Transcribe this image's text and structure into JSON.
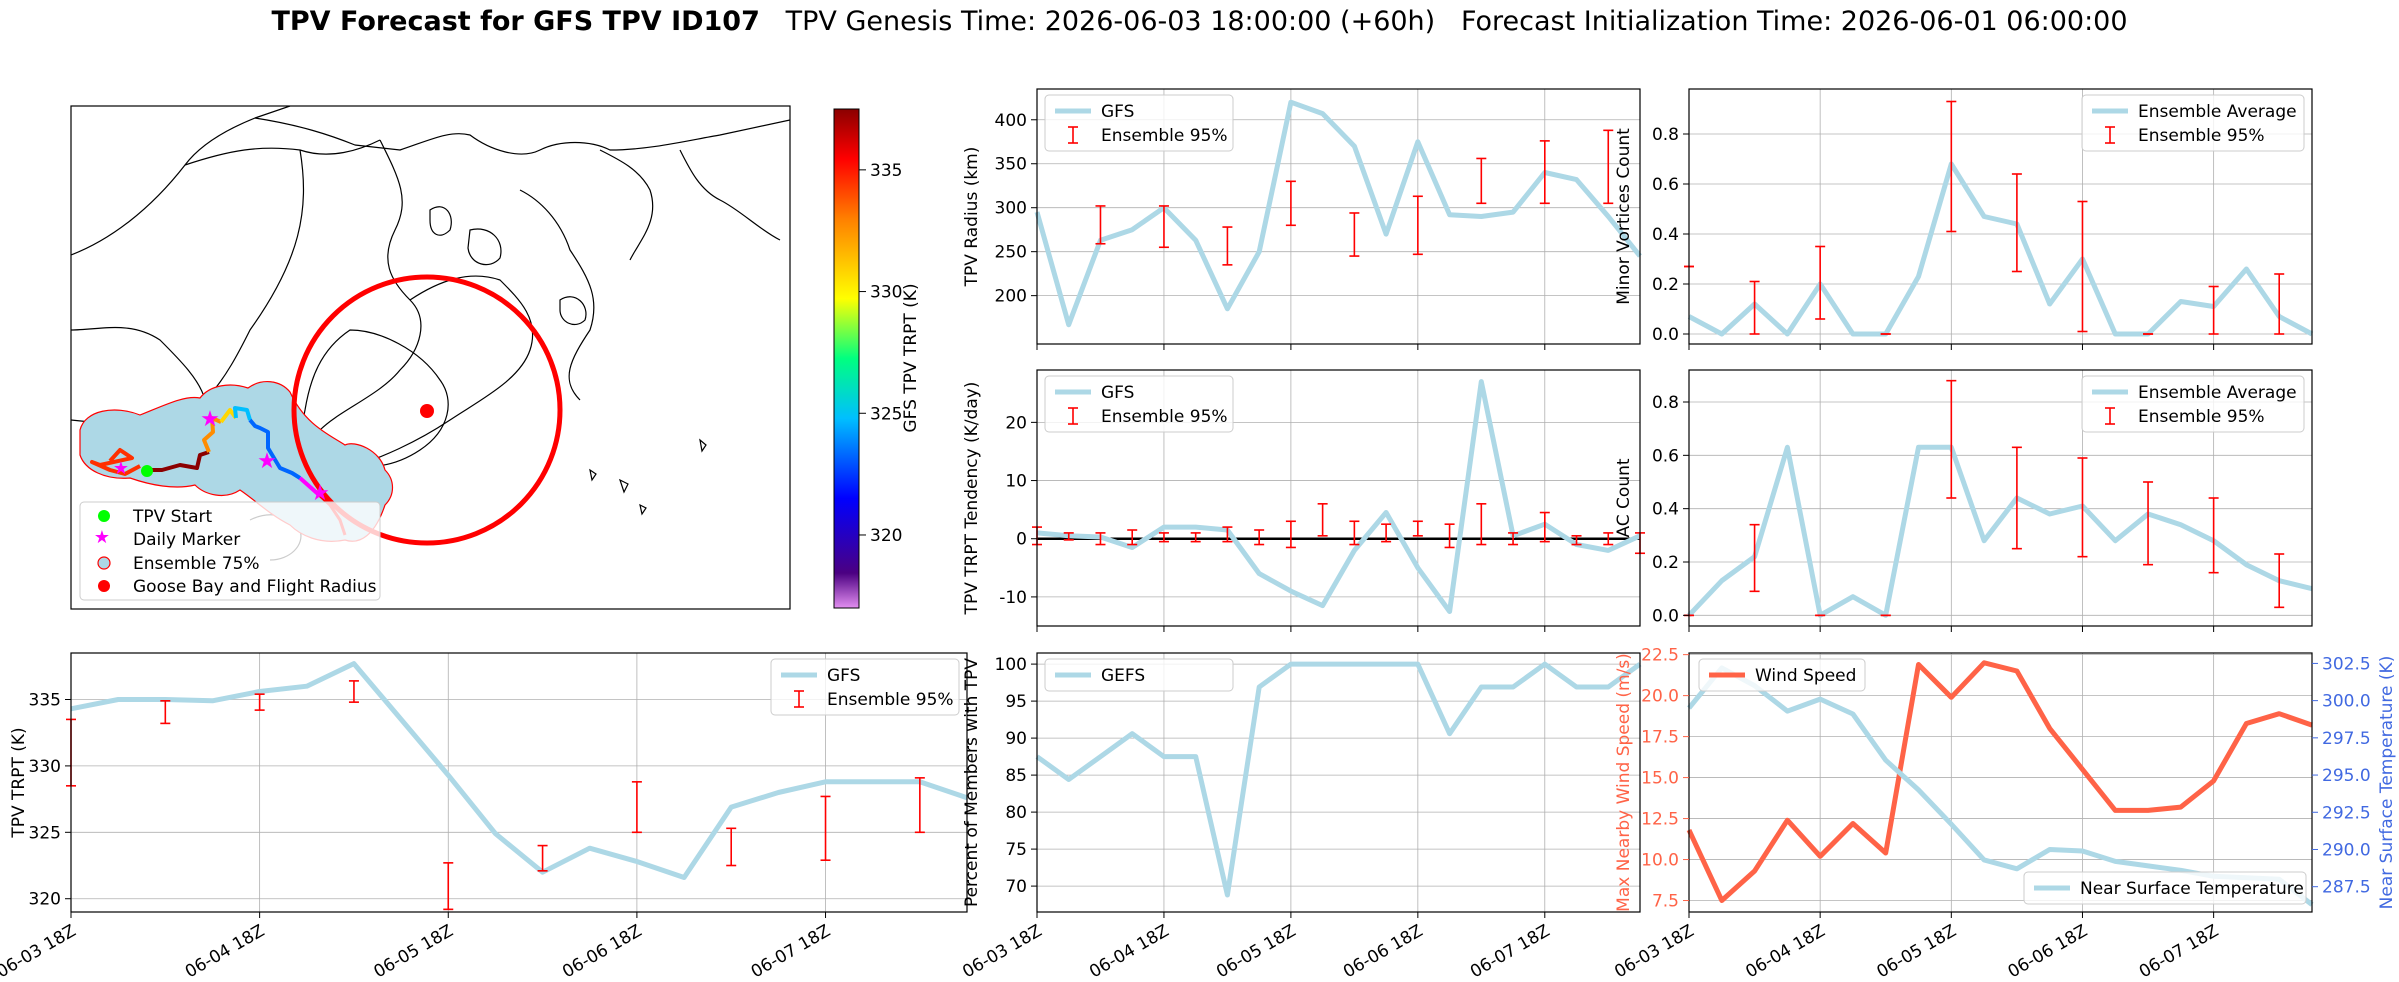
{
  "title": {
    "bold": "TPV Forecast for GFS TPV ID107",
    "genesis": "TPV Genesis Time: 2026-06-03 18:00:00 (+60h)",
    "init": "Forecast Initialization Time: 2026-06-01 06:00:00"
  },
  "colors": {
    "gfs_line": "#add8e6",
    "ensemble_err": "#ff0000",
    "wind": "#ff6347",
    "temp_axis": "#4169e1",
    "track_fill": "#add8e6",
    "flight_circle": "#ff0000"
  },
  "map": {
    "colorbar_label": "GFS TPV TRPT (K)",
    "colorbar_ticks": [
      "320",
      "325",
      "330",
      "335"
    ],
    "colorbar_range": [
      317,
      337.5
    ],
    "legend": [
      {
        "label": "TPV Start",
        "marker": "circle",
        "color": "#00ff00"
      },
      {
        "label": "Daily Marker",
        "marker": "star",
        "color": "#ff00ff"
      },
      {
        "label": "Ensemble 75%",
        "marker": "circle",
        "color": "#add8e6"
      },
      {
        "label": "Goose Bay and Flight Radius",
        "marker": "circle",
        "color": "#ff0000"
      }
    ]
  },
  "x_ticks": [
    "06-03 18Z",
    "06-04 18Z",
    "06-05 18Z",
    "06-06 18Z",
    "06-07 18Z"
  ],
  "chart_data": [
    {
      "id": "trpt",
      "type": "line",
      "ylabel": "TPV TRPT (K)",
      "ylim": [
        319,
        338.5
      ],
      "yticks": [
        320,
        325,
        330,
        335
      ],
      "x": [
        0,
        0.25,
        0.5,
        0.75,
        1,
        1.25,
        1.5,
        1.75,
        2,
        2.25,
        2.5,
        2.75,
        3,
        3.25,
        3.5,
        3.75,
        4,
        4.25,
        4.5,
        4.75
      ],
      "series": [
        {
          "name": "GFS",
          "values": [
            334.3,
            335,
            335,
            334.9,
            335.6,
            336,
            337.7,
            333.5,
            329.3,
            324.9,
            322,
            323.8,
            322.8,
            321.6,
            326.9,
            328,
            328.8,
            328.8,
            328.8,
            327.6
          ]
        }
      ],
      "errorbars": [
        {
          "x": 0,
          "low": 328.5,
          "high": 333.5
        },
        {
          "x": 0.5,
          "low": 333.2,
          "high": 334.9
        },
        {
          "x": 1,
          "low": 334.2,
          "high": 335.4
        },
        {
          "x": 1.5,
          "low": 334.8,
          "high": 336.4
        },
        {
          "x": 2,
          "low": 319.2,
          "high": 322.7
        },
        {
          "x": 2.5,
          "low": 322.1,
          "high": 324
        },
        {
          "x": 3,
          "low": 325,
          "high": 328.8
        },
        {
          "x": 3.5,
          "low": 322.5,
          "high": 325.3
        },
        {
          "x": 4,
          "low": 322.9,
          "high": 327.7
        },
        {
          "x": 4.5,
          "low": 325,
          "high": 329.1
        }
      ],
      "legend": [
        "GFS",
        "Ensemble 95%"
      ]
    },
    {
      "id": "radius",
      "type": "line",
      "ylabel": "TPV Radius (km)",
      "ylim": [
        145,
        435
      ],
      "yticks": [
        200,
        250,
        300,
        350,
        400
      ],
      "x": [
        0,
        0.25,
        0.5,
        0.75,
        1,
        1.25,
        1.5,
        1.75,
        2,
        2.25,
        2.5,
        2.75,
        3,
        3.25,
        3.5,
        3.75,
        4,
        4.25,
        4.5,
        4.75
      ],
      "series": [
        {
          "name": "GFS",
          "values": [
            295,
            167,
            263,
            275,
            300,
            263,
            185,
            250,
            420,
            407,
            370,
            270,
            375,
            292,
            290,
            295,
            340,
            332,
            290,
            245
          ]
        }
      ],
      "errorbars": [
        {
          "x": 0.5,
          "low": 259,
          "high": 302
        },
        {
          "x": 1,
          "low": 255,
          "high": 302
        },
        {
          "x": 1.5,
          "low": 235,
          "high": 278
        },
        {
          "x": 2,
          "low": 280,
          "high": 330
        },
        {
          "x": 2.5,
          "low": 245,
          "high": 294
        },
        {
          "x": 3,
          "low": 247,
          "high": 313
        },
        {
          "x": 3.5,
          "low": 305,
          "high": 356
        },
        {
          "x": 4,
          "low": 305,
          "high": 376
        },
        {
          "x": 4.5,
          "low": 305,
          "high": 388
        }
      ],
      "legend": [
        "GFS",
        "Ensemble 95%"
      ]
    },
    {
      "id": "minor",
      "type": "line",
      "ylabel": "Minor Vortices Count",
      "ylim": [
        -0.04,
        0.98
      ],
      "yticks": [
        0.0,
        0.2,
        0.4,
        0.6,
        0.8
      ],
      "x": [
        0,
        0.25,
        0.5,
        0.75,
        1,
        1.25,
        1.5,
        1.75,
        2,
        2.25,
        2.5,
        2.75,
        3,
        3.25,
        3.5,
        3.75,
        4,
        4.25,
        4.5,
        4.75
      ],
      "series": [
        {
          "name": "Ensemble Average",
          "values": [
            0.07,
            0,
            0.12,
            0,
            0.2,
            0,
            0,
            0.23,
            0.68,
            0.47,
            0.44,
            0.12,
            0.3,
            0,
            0,
            0.13,
            0.11,
            0.26,
            0.07,
            0
          ]
        }
      ],
      "errorbars": [
        {
          "x": 0,
          "low": 0.27,
          "high": 0.27
        },
        {
          "x": 0.5,
          "low": 0,
          "high": 0.21
        },
        {
          "x": 1,
          "low": 0.06,
          "high": 0.35
        },
        {
          "x": 1.5,
          "low": 0,
          "high": 0
        },
        {
          "x": 2,
          "low": 0.41,
          "high": 0.93
        },
        {
          "x": 2.5,
          "low": 0.25,
          "high": 0.64
        },
        {
          "x": 3,
          "low": 0.01,
          "high": 0.53
        },
        {
          "x": 3.5,
          "low": 0,
          "high": 0
        },
        {
          "x": 4,
          "low": 0,
          "high": 0.19
        },
        {
          "x": 4.5,
          "low": 0,
          "high": 0.24
        }
      ],
      "legend": [
        "Ensemble Average",
        "Ensemble 95%"
      ]
    },
    {
      "id": "tendency",
      "type": "line",
      "ylabel": "TPV TRPT Tendency (K/day)",
      "ylim": [
        -15,
        29
      ],
      "yticks": [
        -10,
        0,
        10,
        20
      ],
      "zero_line": true,
      "x": [
        0,
        0.25,
        0.5,
        0.75,
        1,
        1.25,
        1.5,
        1.75,
        2,
        2.25,
        2.5,
        2.75,
        3,
        3.25,
        3.5,
        3.75,
        4,
        4.25,
        4.5,
        4.75
      ],
      "series": [
        {
          "name": "GFS",
          "values": [
            1,
            0.5,
            0.3,
            -1.5,
            2,
            2,
            1.5,
            -6,
            -9,
            -11.5,
            -2,
            4.5,
            -5,
            -12.5,
            27,
            0.5,
            2.5,
            -1,
            -2,
            0.5
          ]
        }
      ],
      "errorbars": [
        {
          "x": 0,
          "low": -1,
          "high": 2
        },
        {
          "x": 0.25,
          "low": -0.2,
          "high": 1
        },
        {
          "x": 0.5,
          "low": -1,
          "high": 1
        },
        {
          "x": 0.75,
          "low": -1,
          "high": 1.5
        },
        {
          "x": 1,
          "low": -0.5,
          "high": 1
        },
        {
          "x": 1.25,
          "low": -0.5,
          "high": 1
        },
        {
          "x": 1.5,
          "low": -0.5,
          "high": 2
        },
        {
          "x": 1.75,
          "low": -1,
          "high": 1.5
        },
        {
          "x": 2,
          "low": -1.5,
          "high": 3
        },
        {
          "x": 2.25,
          "low": 0.5,
          "high": 6
        },
        {
          "x": 2.5,
          "low": -1,
          "high": 3
        },
        {
          "x": 2.75,
          "low": -0.5,
          "high": 2.5
        },
        {
          "x": 3,
          "low": 0.5,
          "high": 3
        },
        {
          "x": 3.25,
          "low": -1.5,
          "high": 2.5
        },
        {
          "x": 3.5,
          "low": -1,
          "high": 6
        },
        {
          "x": 3.75,
          "low": -1,
          "high": 1
        },
        {
          "x": 4,
          "low": -0.5,
          "high": 4.5
        },
        {
          "x": 4.25,
          "low": -1,
          "high": 0.5
        },
        {
          "x": 4.5,
          "low": -1,
          "high": 1
        },
        {
          "x": 4.75,
          "low": -2.5,
          "high": 1
        }
      ],
      "legend": [
        "GFS",
        "Ensemble 95%"
      ]
    },
    {
      "id": "ac",
      "type": "line",
      "ylabel": "AC Count",
      "ylim": [
        -0.04,
        0.92
      ],
      "yticks": [
        0.0,
        0.2,
        0.4,
        0.6,
        0.8
      ],
      "x": [
        0,
        0.25,
        0.5,
        0.75,
        1,
        1.25,
        1.5,
        1.75,
        2,
        2.25,
        2.5,
        2.75,
        3,
        3.25,
        3.5,
        3.75,
        4,
        4.25,
        4.5,
        4.75
      ],
      "series": [
        {
          "name": "Ensemble Average",
          "values": [
            0,
            0.13,
            0.22,
            0.63,
            0,
            0.07,
            0,
            0.63,
            0.63,
            0.28,
            0.44,
            0.38,
            0.41,
            0.28,
            0.38,
            0.34,
            0.28,
            0.19,
            0.13,
            0.1
          ]
        }
      ],
      "errorbars": [
        {
          "x": 0,
          "low": 0,
          "high": 0
        },
        {
          "x": 0.5,
          "low": 0.09,
          "high": 0.34
        },
        {
          "x": 1,
          "low": 0,
          "high": 0
        },
        {
          "x": 1.5,
          "low": 0,
          "high": 0
        },
        {
          "x": 2,
          "low": 0.44,
          "high": 0.88
        },
        {
          "x": 2.5,
          "low": 0.25,
          "high": 0.63
        },
        {
          "x": 3,
          "low": 0.22,
          "high": 0.59
        },
        {
          "x": 3.5,
          "low": 0.19,
          "high": 0.5
        },
        {
          "x": 4,
          "low": 0.16,
          "high": 0.44
        },
        {
          "x": 4.5,
          "low": 0.03,
          "high": 0.23
        }
      ],
      "legend": [
        "Ensemble Average",
        "Ensemble 95%"
      ]
    },
    {
      "id": "percent",
      "type": "line",
      "ylabel": "Percent of Members with TPV",
      "ylim": [
        66.5,
        101.5
      ],
      "yticks": [
        70,
        75,
        80,
        85,
        90,
        95,
        100
      ],
      "x": [
        0,
        0.25,
        0.5,
        0.75,
        1,
        1.25,
        1.5,
        1.75,
        2,
        2.25,
        2.5,
        2.75,
        3,
        3.25,
        3.5,
        3.75,
        4,
        4.25,
        4.5,
        4.75
      ],
      "series": [
        {
          "name": "GEFS",
          "values": [
            87.5,
            84.4,
            87.5,
            90.6,
            87.5,
            87.5,
            68.8,
            96.9,
            100,
            100,
            100,
            100,
            100,
            90.6,
            96.9,
            96.9,
            100,
            96.9,
            96.9,
            100
          ]
        }
      ],
      "legend": [
        "GEFS"
      ]
    },
    {
      "id": "windtemp",
      "type": "line",
      "ylabel": "Max Nearby Wind Speed (m/s)",
      "ylabel2": "Near Surface Temperature (K)",
      "ylim": [
        6.8,
        22.6
      ],
      "yticks": [
        7.5,
        10.0,
        12.5,
        15.0,
        17.5,
        20.0,
        22.5
      ],
      "ylim2": [
        285.8,
        303.2
      ],
      "yticks2": [
        287.5,
        290.0,
        292.5,
        295.0,
        297.5,
        300.0,
        302.5
      ],
      "x": [
        0,
        0.25,
        0.5,
        0.75,
        1,
        1.25,
        1.5,
        1.75,
        2,
        2.25,
        2.5,
        2.75,
        3,
        3.25,
        3.5,
        3.75,
        4,
        4.25,
        4.5,
        4.75
      ],
      "series": [
        {
          "name": "Wind Speed",
          "axis": "left",
          "values": [
            11.8,
            7.5,
            9.3,
            12.4,
            10.2,
            12.2,
            10.4,
            21.9,
            19.9,
            22,
            21.5,
            18,
            15.5,
            13,
            13,
            13.2,
            14.8,
            18.3,
            18.9,
            18.2
          ]
        },
        {
          "name": "Near Surface Temperature",
          "axis": "right",
          "values": [
            299.5,
            302.2,
            301,
            299.3,
            300.1,
            299.1,
            296,
            294,
            291.7,
            289.3,
            288.7,
            290,
            289.9,
            289.2,
            288.9,
            288.6,
            288.2,
            288.1,
            288,
            286.3
          ]
        }
      ],
      "legend": [
        "Wind Speed",
        "Near Surface Temperature"
      ]
    }
  ]
}
